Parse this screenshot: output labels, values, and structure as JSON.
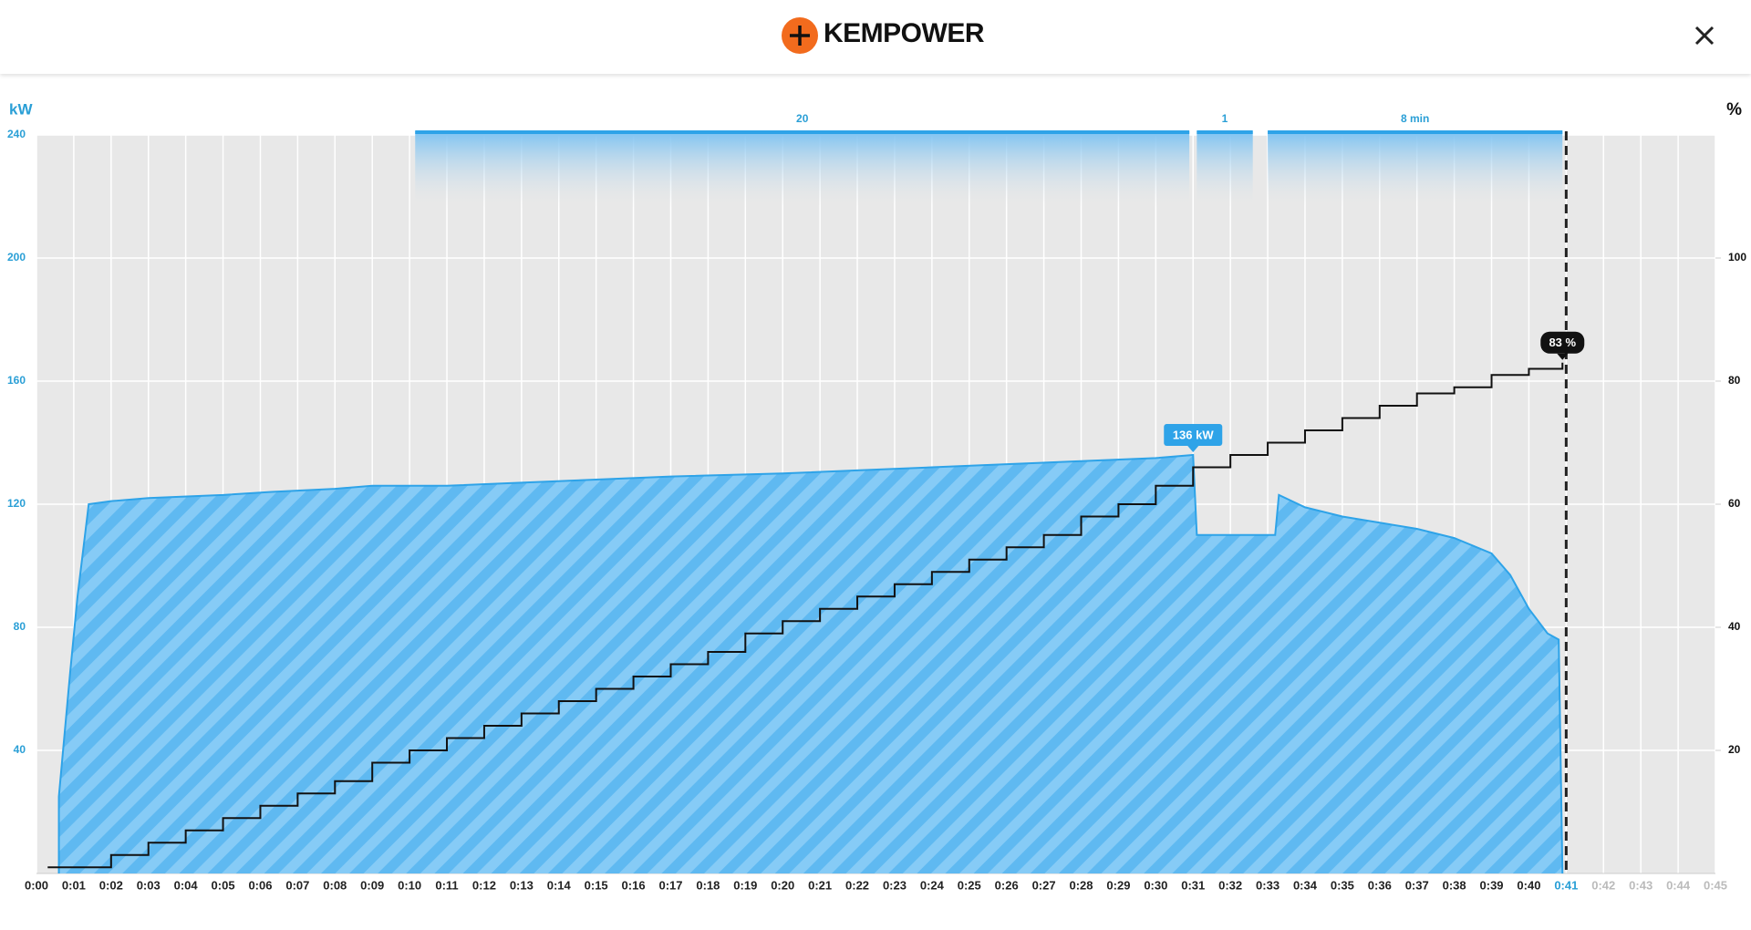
{
  "brand": "KEMPOWER",
  "chart_data": {
    "type": "area",
    "y_label": "kW",
    "y2_label": "%",
    "xlim": [
      0,
      45
    ],
    "xticks": [
      {
        "value": 0,
        "label": "0:00"
      },
      {
        "value": 1,
        "label": "0:01"
      },
      {
        "value": 2,
        "label": "0:02"
      },
      {
        "value": 3,
        "label": "0:03"
      },
      {
        "value": 4,
        "label": "0:04"
      },
      {
        "value": 5,
        "label": "0:05"
      },
      {
        "value": 6,
        "label": "0:06"
      },
      {
        "value": 7,
        "label": "0:07"
      },
      {
        "value": 8,
        "label": "0:08"
      },
      {
        "value": 9,
        "label": "0:09"
      },
      {
        "value": 10,
        "label": "0:10"
      },
      {
        "value": 11,
        "label": "0:11"
      },
      {
        "value": 12,
        "label": "0:12"
      },
      {
        "value": 13,
        "label": "0:13"
      },
      {
        "value": 14,
        "label": "0:14"
      },
      {
        "value": 15,
        "label": "0:15"
      },
      {
        "value": 16,
        "label": "0:16"
      },
      {
        "value": 17,
        "label": "0:17"
      },
      {
        "value": 18,
        "label": "0:18"
      },
      {
        "value": 19,
        "label": "0:19"
      },
      {
        "value": 20,
        "label": "0:20"
      },
      {
        "value": 21,
        "label": "0:21"
      },
      {
        "value": 22,
        "label": "0:22"
      },
      {
        "value": 23,
        "label": "0:23"
      },
      {
        "value": 24,
        "label": "0:24"
      },
      {
        "value": 25,
        "label": "0:25"
      },
      {
        "value": 26,
        "label": "0:26"
      },
      {
        "value": 27,
        "label": "0:27"
      },
      {
        "value": 28,
        "label": "0:28"
      },
      {
        "value": 29,
        "label": "0:29"
      },
      {
        "value": 30,
        "label": "0:30"
      },
      {
        "value": 31,
        "label": "0:31"
      },
      {
        "value": 32,
        "label": "0:32"
      },
      {
        "value": 33,
        "label": "0:33"
      },
      {
        "value": 34,
        "label": "0:34"
      },
      {
        "value": 35,
        "label": "0:35"
      },
      {
        "value": 36,
        "label": "0:36"
      },
      {
        "value": 37,
        "label": "0:37"
      },
      {
        "value": 38,
        "label": "0:38"
      },
      {
        "value": 39,
        "label": "0:39"
      },
      {
        "value": 40,
        "label": "0:40"
      },
      {
        "value": 41,
        "label": "0:41"
      },
      {
        "value": 42,
        "label": "0:42"
      },
      {
        "value": 43,
        "label": "0:43"
      },
      {
        "value": 44,
        "label": "0:44"
      },
      {
        "value": 45,
        "label": "0:45"
      }
    ],
    "ylim": [
      0,
      240
    ],
    "yticks": [
      40,
      80,
      120,
      160,
      200,
      240
    ],
    "y2lim": [
      0,
      120
    ],
    "y2ticks": [
      20,
      40,
      60,
      80,
      100
    ],
    "grid": true,
    "marker_x": 41,
    "series": [
      {
        "color": "#2ea3e8",
        "x": [
          0.6,
          0.6,
          0.9,
          1.1,
          1.4,
          2,
          3,
          5,
          6.3,
          8,
          9,
          11,
          13,
          15,
          17,
          20,
          22,
          24,
          26,
          28,
          30,
          31.0,
          31.1,
          32.4,
          33.2,
          33.3,
          34,
          35,
          36,
          37,
          38,
          39,
          39.5,
          40,
          40.5,
          40.8,
          40.9
        ],
        "values": [
          0,
          25,
          65,
          90,
          120,
          121,
          122,
          123,
          124,
          125,
          126,
          126,
          127,
          128,
          129,
          130,
          131,
          132,
          133,
          134,
          135,
          136,
          110,
          110,
          110,
          123,
          119,
          116,
          114,
          112,
          109,
          104,
          97,
          86,
          78,
          76,
          0
        ]
      },
      {
        "color": "#111111",
        "axis": "y2",
        "shape": "step",
        "x": [
          0.3,
          1.5,
          2,
          3,
          4,
          5,
          6,
          7,
          8,
          9,
          10,
          11,
          12,
          13,
          14,
          15,
          16,
          17,
          18,
          19,
          20,
          21,
          22,
          23,
          24,
          25,
          26,
          27,
          28,
          29,
          30,
          31,
          32,
          33,
          34,
          35,
          36,
          37,
          38,
          39,
          40,
          40.9
        ],
        "values": [
          1,
          1,
          3,
          5,
          7,
          9,
          11,
          13,
          15,
          18,
          20,
          22,
          24,
          26,
          28,
          30,
          32,
          34,
          36,
          39,
          41,
          43,
          45,
          47,
          49,
          51,
          53,
          55,
          58,
          60,
          63,
          66,
          68,
          70,
          72,
          74,
          76,
          78,
          79,
          81,
          82,
          83
        ]
      }
    ],
    "periods": [
      {
        "start": 10.15,
        "end": 30.9,
        "label": "20"
      },
      {
        "start": 31.1,
        "end": 32.6,
        "label": "1"
      },
      {
        "start": 33.0,
        "end": 40.9,
        "label": "8 min"
      }
    ],
    "annotations": [
      {
        "x": 31.0,
        "y": 136,
        "label": "136 kW",
        "color": "#2ea3e8"
      },
      {
        "x": 40.9,
        "y": 83,
        "label": "83 %",
        "axis": "y2",
        "color": "#111111"
      }
    ]
  }
}
